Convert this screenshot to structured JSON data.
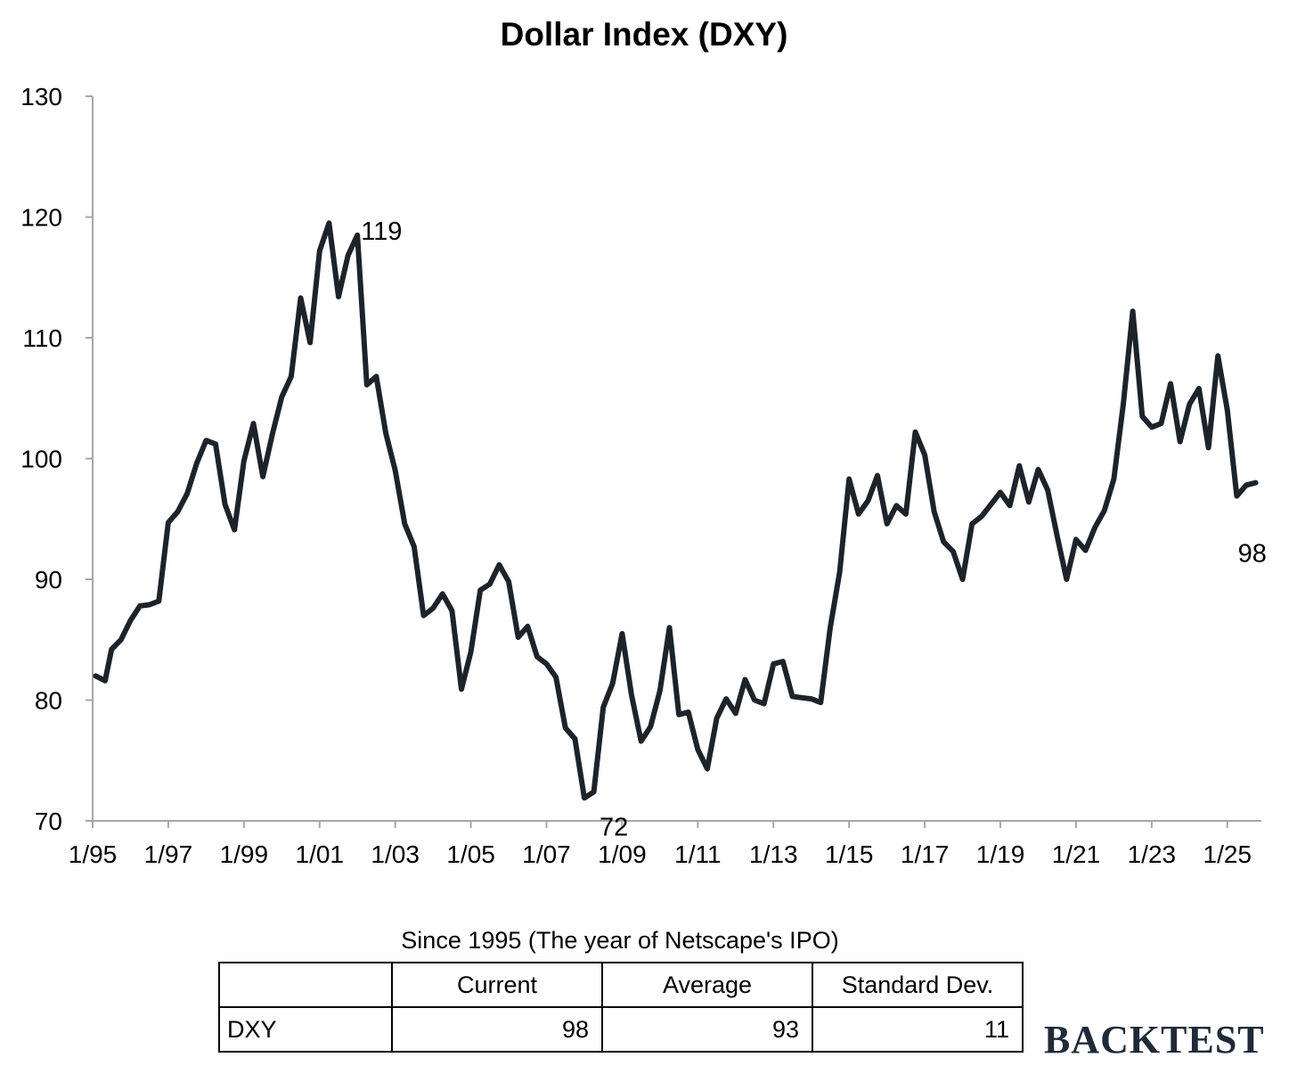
{
  "chart_data": {
    "type": "line",
    "title": "Dollar Index (DXY)",
    "xlabel": "",
    "ylabel": "",
    "ylim": [
      70,
      130
    ],
    "yticks": [
      70,
      80,
      90,
      100,
      110,
      120,
      130
    ],
    "xlim": [
      1995.0,
      2025.9
    ],
    "xticks": [
      {
        "value": 1995,
        "label": "1/95"
      },
      {
        "value": 1997,
        "label": "1/97"
      },
      {
        "value": 1999,
        "label": "1/99"
      },
      {
        "value": 2001,
        "label": "1/01"
      },
      {
        "value": 2003,
        "label": "1/03"
      },
      {
        "value": 2005,
        "label": "1/05"
      },
      {
        "value": 2007,
        "label": "1/07"
      },
      {
        "value": 2009,
        "label": "1/09"
      },
      {
        "value": 2011,
        "label": "1/11"
      },
      {
        "value": 2013,
        "label": "1/13"
      },
      {
        "value": 2015,
        "label": "1/15"
      },
      {
        "value": 2017,
        "label": "1/17"
      },
      {
        "value": 2019,
        "label": "1/19"
      },
      {
        "value": 2021,
        "label": "1/21"
      },
      {
        "value": 2023,
        "label": "1/23"
      },
      {
        "value": 2025,
        "label": "1/25"
      }
    ],
    "grid": false,
    "line_color": "#1c232b",
    "series": [
      {
        "points": [
          [
            1995.08,
            82.0
          ],
          [
            1995.33,
            81.6
          ],
          [
            1995.5,
            84.2
          ],
          [
            1995.75,
            85.0
          ],
          [
            1996.0,
            86.6
          ],
          [
            1996.25,
            87.8
          ],
          [
            1996.5,
            87.9
          ],
          [
            1996.75,
            88.2
          ],
          [
            1997.0,
            94.7
          ],
          [
            1997.25,
            95.6
          ],
          [
            1997.5,
            97.1
          ],
          [
            1997.75,
            99.6
          ],
          [
            1998.0,
            101.5
          ],
          [
            1998.25,
            101.2
          ],
          [
            1998.5,
            96.2
          ],
          [
            1998.75,
            94.1
          ],
          [
            1999.0,
            99.8
          ],
          [
            1999.25,
            102.9
          ],
          [
            1999.5,
            98.5
          ],
          [
            1999.75,
            102.0
          ],
          [
            2000.0,
            105.1
          ],
          [
            2000.25,
            106.8
          ],
          [
            2000.5,
            113.3
          ],
          [
            2000.75,
            109.6
          ],
          [
            2001.0,
            117.2
          ],
          [
            2001.25,
            119.5
          ],
          [
            2001.5,
            113.4
          ],
          [
            2001.75,
            116.8
          ],
          [
            2002.0,
            118.5
          ],
          [
            2002.25,
            106.1
          ],
          [
            2002.5,
            106.8
          ],
          [
            2002.75,
            102.1
          ],
          [
            2003.0,
            99.0
          ],
          [
            2003.25,
            94.6
          ],
          [
            2003.5,
            92.7
          ],
          [
            2003.75,
            87.0
          ],
          [
            2004.0,
            87.6
          ],
          [
            2004.25,
            88.8
          ],
          [
            2004.5,
            87.4
          ],
          [
            2004.75,
            80.9
          ],
          [
            2005.0,
            84.0
          ],
          [
            2005.25,
            89.1
          ],
          [
            2005.5,
            89.6
          ],
          [
            2005.75,
            91.2
          ],
          [
            2006.0,
            89.8
          ],
          [
            2006.25,
            85.2
          ],
          [
            2006.5,
            86.1
          ],
          [
            2006.75,
            83.6
          ],
          [
            2007.0,
            83.0
          ],
          [
            2007.25,
            81.9
          ],
          [
            2007.5,
            77.7
          ],
          [
            2007.75,
            76.8
          ],
          [
            2008.0,
            71.9
          ],
          [
            2008.25,
            72.4
          ],
          [
            2008.5,
            79.4
          ],
          [
            2008.75,
            81.4
          ],
          [
            2009.0,
            85.5
          ],
          [
            2009.25,
            80.4
          ],
          [
            2009.5,
            76.6
          ],
          [
            2009.75,
            77.8
          ],
          [
            2010.0,
            80.8
          ],
          [
            2010.25,
            86.0
          ],
          [
            2010.5,
            78.8
          ],
          [
            2010.75,
            79.0
          ],
          [
            2011.0,
            75.9
          ],
          [
            2011.25,
            74.3
          ],
          [
            2011.5,
            78.5
          ],
          [
            2011.75,
            80.1
          ],
          [
            2012.0,
            78.9
          ],
          [
            2012.25,
            81.7
          ],
          [
            2012.5,
            80.0
          ],
          [
            2012.75,
            79.7
          ],
          [
            2013.0,
            83.0
          ],
          [
            2013.25,
            83.2
          ],
          [
            2013.5,
            80.3
          ],
          [
            2013.75,
            80.2
          ],
          [
            2014.0,
            80.1
          ],
          [
            2014.25,
            79.8
          ],
          [
            2014.5,
            86.0
          ],
          [
            2014.75,
            90.6
          ],
          [
            2015.0,
            98.3
          ],
          [
            2015.25,
            95.4
          ],
          [
            2015.5,
            96.5
          ],
          [
            2015.75,
            98.6
          ],
          [
            2016.0,
            94.6
          ],
          [
            2016.25,
            96.1
          ],
          [
            2016.5,
            95.4
          ],
          [
            2016.75,
            102.2
          ],
          [
            2017.0,
            100.3
          ],
          [
            2017.25,
            95.6
          ],
          [
            2017.5,
            93.1
          ],
          [
            2017.75,
            92.3
          ],
          [
            2018.0,
            90.0
          ],
          [
            2018.25,
            94.6
          ],
          [
            2018.5,
            95.2
          ],
          [
            2018.75,
            96.2
          ],
          [
            2019.0,
            97.2
          ],
          [
            2019.25,
            96.1
          ],
          [
            2019.5,
            99.4
          ],
          [
            2019.75,
            96.4
          ],
          [
            2020.0,
            99.1
          ],
          [
            2020.25,
            97.4
          ],
          [
            2020.5,
            93.6
          ],
          [
            2020.75,
            90.0
          ],
          [
            2021.0,
            93.3
          ],
          [
            2021.25,
            92.4
          ],
          [
            2021.5,
            94.3
          ],
          [
            2021.75,
            95.7
          ],
          [
            2022.0,
            98.3
          ],
          [
            2022.25,
            104.5
          ],
          [
            2022.5,
            112.2
          ],
          [
            2022.75,
            103.5
          ],
          [
            2023.0,
            102.6
          ],
          [
            2023.25,
            102.9
          ],
          [
            2023.5,
            106.2
          ],
          [
            2023.75,
            101.4
          ],
          [
            2024.0,
            104.5
          ],
          [
            2024.25,
            105.8
          ],
          [
            2024.5,
            100.9
          ],
          [
            2024.75,
            108.5
          ],
          [
            2025.0,
            104.0
          ],
          [
            2025.25,
            96.9
          ],
          [
            2025.5,
            97.8
          ],
          [
            2025.75,
            98.0
          ]
        ]
      }
    ],
    "annotations": [
      {
        "label": "119",
        "x": 2002.0,
        "y": 118.5,
        "position": "right"
      },
      {
        "label": "72",
        "x": 2008.0,
        "y": 71.9,
        "position": "below-right"
      },
      {
        "label": "98",
        "x": 2025.75,
        "y": 98.0,
        "position": "below"
      }
    ]
  },
  "table": {
    "caption": "Since 1995 (The year of Netscape's IPO)",
    "headers": [
      "",
      "Current",
      "Average",
      "Standard Dev."
    ],
    "rows": [
      {
        "label": "DXY",
        "current": "98",
        "average": "93",
        "std_dev": "11"
      }
    ]
  },
  "brand": {
    "text": "BACKTEST",
    "color": "#1e2a3a"
  }
}
